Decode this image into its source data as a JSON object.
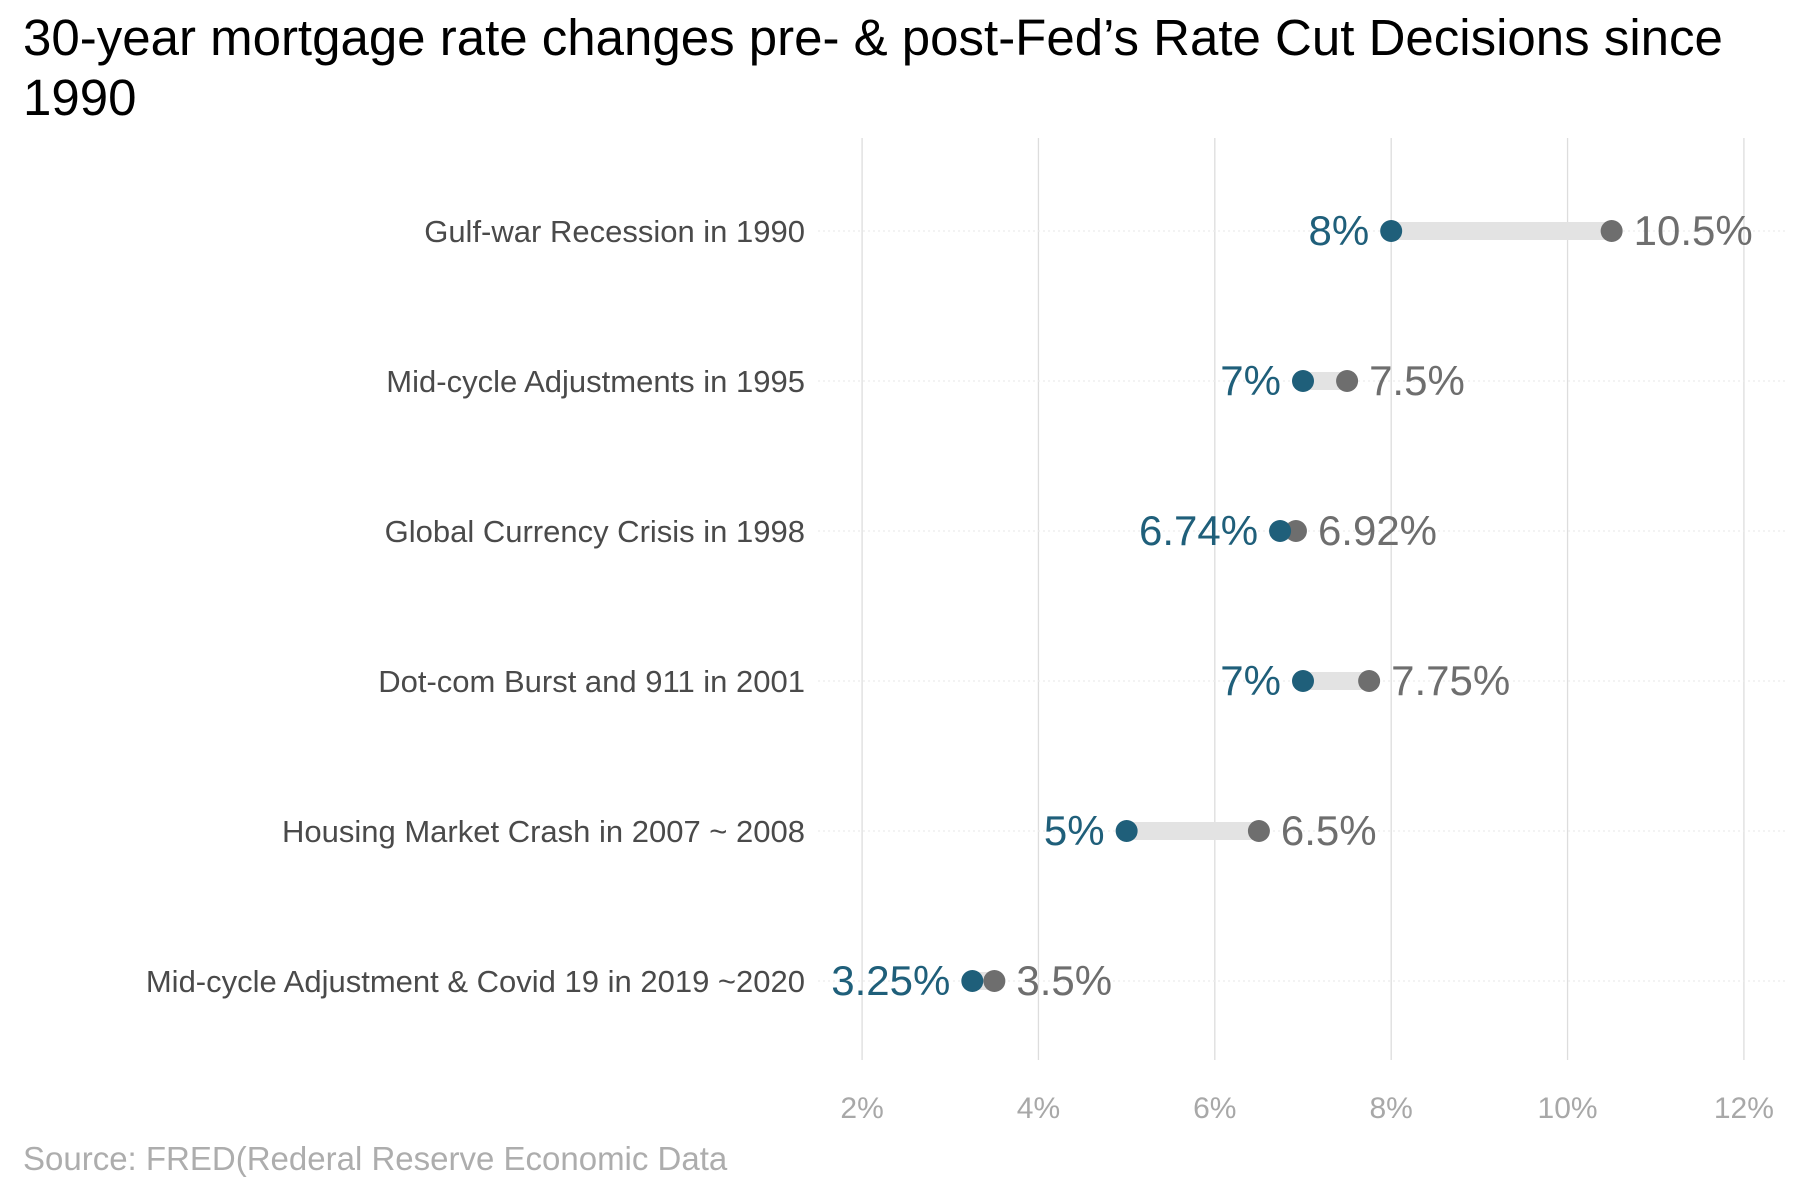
{
  "chart_data": {
    "type": "dumbbell",
    "title": "30-year mortgage rate changes pre- & post-Fed’s Rate Cut Decisions since 1990",
    "caption": "Source: FRED(Rederal Reserve Economic Data",
    "xlabel": "",
    "ylabel": "",
    "xlim": [
      1.5,
      12.5
    ],
    "x_ticks": [
      2,
      4,
      6,
      8,
      10,
      12
    ],
    "x_tick_labels": [
      "2%",
      "4%",
      "6%",
      "8%",
      "10%",
      "12%"
    ],
    "grid": true,
    "legend": "none",
    "categories": [
      "Gulf-war Recession in 1990",
      "Mid-cycle Adjustments in 1995",
      "Global Currency Crisis in 1998",
      "Dot-com Burst and 911 in 2001",
      "Housing Market Crash in 2007 ~ 2008",
      "Mid-cycle Adjustment & Covid 19 in 2019 ~2020"
    ],
    "series": [
      {
        "values": [
          8,
          7,
          6.74,
          7,
          5,
          3.25
        ],
        "labels": [
          "8%",
          "7%",
          "6.74%",
          "7%",
          "5%",
          "3.25%"
        ]
      },
      {
        "values": [
          10.5,
          7.5,
          6.92,
          7.75,
          6.5,
          3.5
        ],
        "labels": [
          "10.5%",
          "7.5%",
          "6.92%",
          "7.75%",
          "6.5%",
          "3.5%"
        ]
      }
    ],
    "colors": {
      "low": "#1f5f7a",
      "high": "#6e6e6e",
      "segment": "#e3e3e3",
      "grid": "#dddddd",
      "tick": "#a8a8a8",
      "category": "#4a4a4a"
    }
  }
}
